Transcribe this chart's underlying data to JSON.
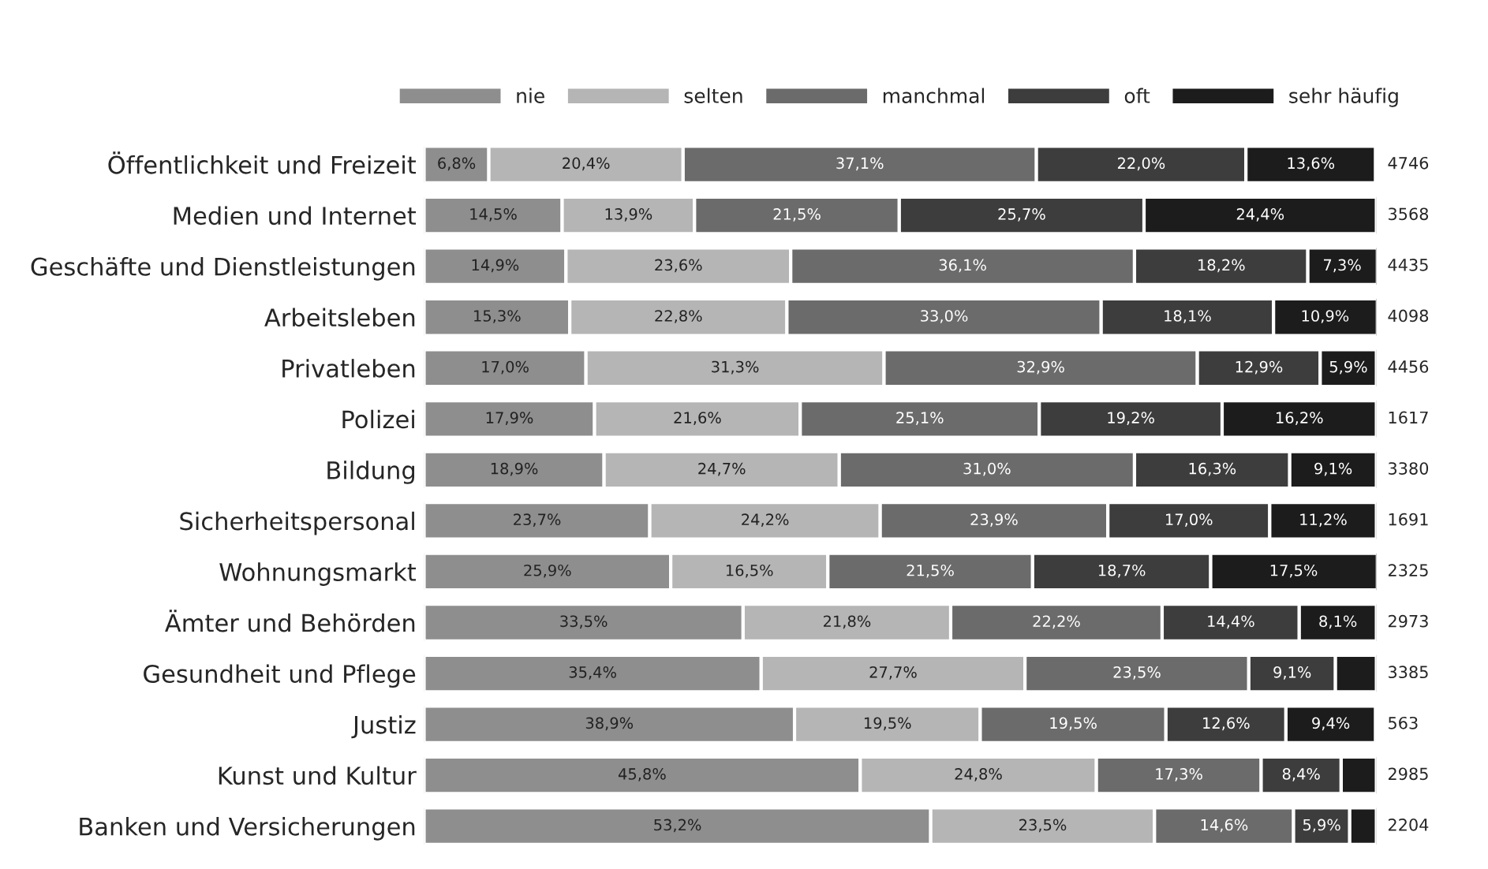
{
  "chart_data": {
    "type": "bar",
    "orientation": "horizontal",
    "stacked": true,
    "legend": "top",
    "grid": false,
    "xlim": [
      0,
      100
    ],
    "tick_labels": "y",
    "categories": [
      "Öffentlichkeit und Freizeit",
      "Medien und Internet",
      "Geschäfte und Dienstleistungen",
      "Arbeitsleben",
      "Privatleben",
      "Polizei",
      "Bildung",
      "Sicherheitspersonal",
      "Wohnungsmarkt",
      "Ämter und Behörden",
      "Gesundheit und Pflege",
      "Justiz",
      "Kunst und Kultur",
      "Banken und Versicherungen"
    ],
    "series": [
      {
        "name": "nie",
        "color": "#8e8e8e",
        "values": [
          6.8,
          14.5,
          14.9,
          15.3,
          17.0,
          17.9,
          18.9,
          23.7,
          25.9,
          33.5,
          35.4,
          38.9,
          45.8,
          53.2
        ],
        "value_labels": [
          "6,8%",
          "14,5%",
          "14,9%",
          "15,3%",
          "17,0%",
          "17,9%",
          "18,9%",
          "23,7%",
          "25,9%",
          "33,5%",
          "35,4%",
          "38,9%",
          "45,8%",
          "53,2%"
        ]
      },
      {
        "name": "selten",
        "color": "#b5b5b5",
        "values": [
          20.4,
          13.9,
          23.6,
          22.8,
          31.3,
          21.6,
          24.7,
          24.2,
          16.5,
          21.8,
          27.7,
          19.5,
          24.8,
          23.5
        ],
        "value_labels": [
          "20,4%",
          "13,9%",
          "23,6%",
          "22,8%",
          "31,3%",
          "21,6%",
          "24,7%",
          "24,2%",
          "16,5%",
          "21,8%",
          "27,7%",
          "19,5%",
          "24,8%",
          "23,5%"
        ]
      },
      {
        "name": "manchmal",
        "color": "#6b6b6b",
        "values": [
          37.1,
          21.5,
          36.1,
          33.0,
          32.9,
          25.1,
          31.0,
          23.9,
          21.5,
          22.2,
          23.5,
          19.5,
          17.3,
          14.6
        ],
        "value_labels": [
          "37,1%",
          "21,5%",
          "36,1%",
          "33,0%",
          "32,9%",
          "25,1%",
          "31,0%",
          "23,9%",
          "21,5%",
          "22,2%",
          "23,5%",
          "19,5%",
          "17,3%",
          "14,6%"
        ]
      },
      {
        "name": "oft",
        "color": "#3d3d3d",
        "values": [
          22.0,
          25.7,
          18.2,
          18.1,
          12.9,
          19.2,
          16.3,
          17.0,
          18.7,
          14.4,
          9.1,
          12.6,
          8.4,
          5.9
        ],
        "value_labels": [
          "22,0%",
          "25,7%",
          "18,2%",
          "18,1%",
          "12,9%",
          "19,2%",
          "16,3%",
          "17,0%",
          "18,7%",
          "14,4%",
          "9,1%",
          "12,6%",
          "8,4%",
          "5,9%"
        ]
      },
      {
        "name": "sehr häufig",
        "color": "#1c1c1c",
        "values": [
          13.6,
          24.4,
          7.3,
          10.9,
          5.9,
          16.2,
          9.1,
          11.2,
          17.5,
          8.1,
          4.3,
          9.4,
          3.7,
          2.8
        ],
        "value_labels": [
          "13,6%",
          "24,4%",
          "7,3%",
          "10,9%",
          "5,9%",
          "16,2%",
          "9,1%",
          "11,2%",
          "17,5%",
          "8,1%",
          null,
          "9,4%",
          null,
          null
        ]
      }
    ],
    "annotations": [
      "4746",
      "3568",
      "4435",
      "4098",
      "4456",
      "1617",
      "3380",
      "1691",
      "2325",
      "2973",
      "3385",
      "563",
      "2985",
      "2204"
    ]
  }
}
